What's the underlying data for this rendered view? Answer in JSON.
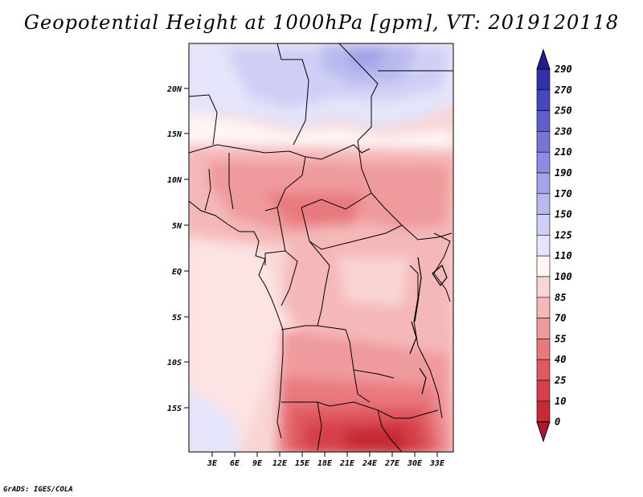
{
  "title": "Geopotential Height at 1000hPa [gpm], VT: 2019120118",
  "credit": "GrADS: IGES/COLA",
  "map": {
    "lat_ticks": [
      "20N",
      "15N",
      "10N",
      "5N",
      "EQ",
      "5S",
      "10S",
      "15S"
    ],
    "lon_ticks": [
      "3E",
      "6E",
      "9E",
      "12E",
      "15E",
      "18E",
      "21E",
      "24E",
      "27E",
      "30E",
      "33E"
    ]
  },
  "colorbar": {
    "levels": [
      "0",
      "10",
      "25",
      "40",
      "55",
      "70",
      "85",
      "100",
      "110",
      "125",
      "150",
      "170",
      "190",
      "210",
      "230",
      "250",
      "270",
      "290"
    ],
    "colors": [
      "#b2182b",
      "#c62a35",
      "#d6404a",
      "#e05a62",
      "#e8797f",
      "#ef9a9c",
      "#f5b8b8",
      "#f9d4d4",
      "#fff5f5",
      "#e4e4fa",
      "#cfcff5",
      "#b9b9f0",
      "#a3a3ea",
      "#8c8ce2",
      "#7575d8",
      "#5e5ecc",
      "#4646bd",
      "#3030aa",
      "#1e1e90"
    ]
  }
}
